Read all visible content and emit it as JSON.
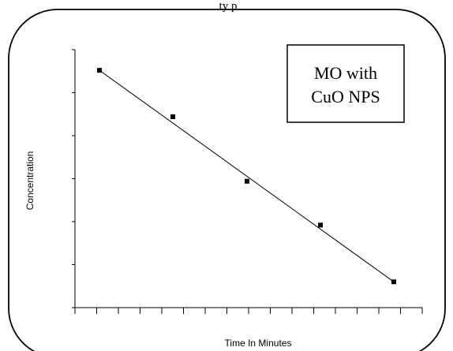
{
  "page": {
    "top_caption": "ty p"
  },
  "chart_data": {
    "type": "scatter",
    "title": "",
    "xlabel": "Time In Minutes",
    "ylabel": "Concentration",
    "xlim": [
      0,
      4
    ],
    "ylim": [
      0,
      1
    ],
    "x_tick_count": 16,
    "y_tick_count": 6,
    "points": [
      {
        "x": 0,
        "y": 0.92
      },
      {
        "x": 1,
        "y": 0.74
      },
      {
        "x": 2,
        "y": 0.49
      },
      {
        "x": 3,
        "y": 0.32
      },
      {
        "x": 4,
        "y": 0.1
      }
    ],
    "trendline": {
      "start": {
        "x": 0,
        "y": 0.92
      },
      "end": {
        "x": 4,
        "y": 0.1
      }
    },
    "legend": {
      "line1": "MO  with",
      "line2": "CuO NPS"
    },
    "colors": {
      "points": "#000000",
      "line": "#000000",
      "frame": "#000000"
    }
  }
}
